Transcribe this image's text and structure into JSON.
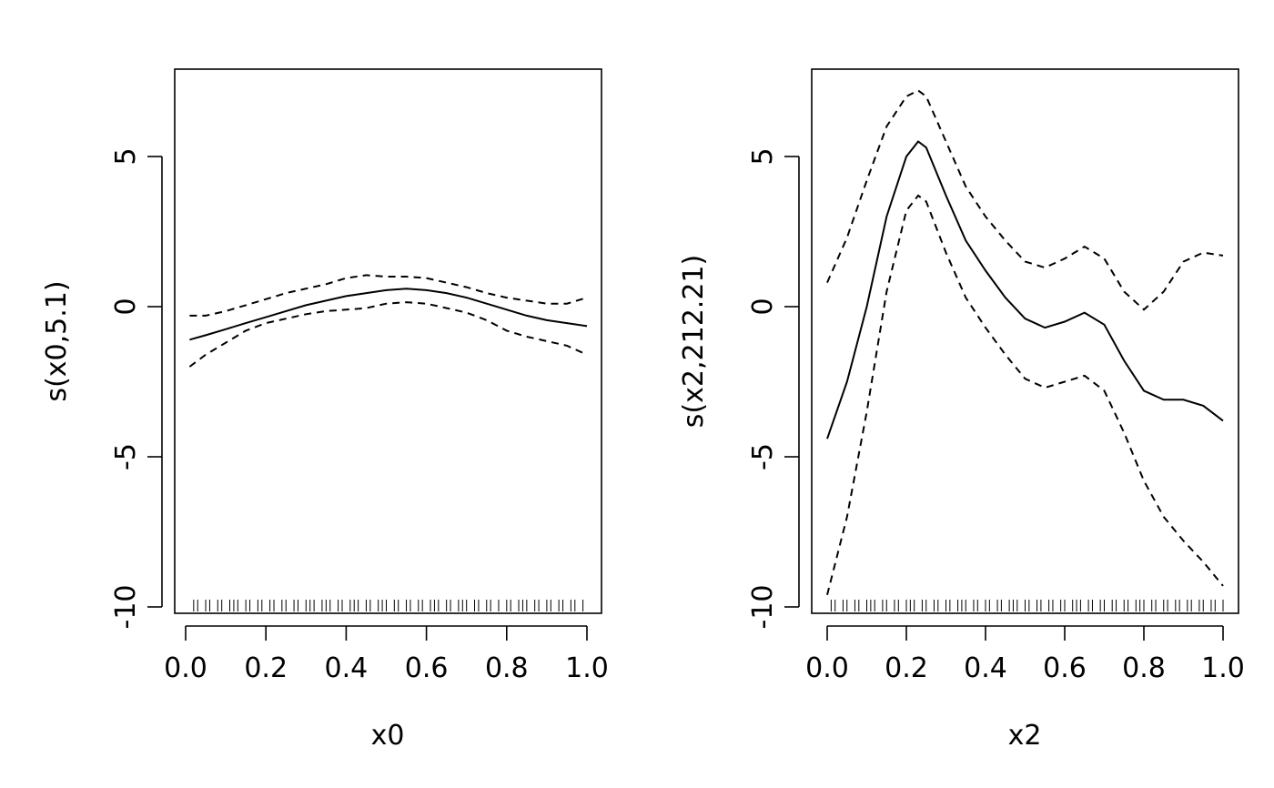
{
  "chart_data": [
    {
      "type": "line",
      "xlabel": "x0",
      "ylabel": "s(x0,5.1)",
      "xlim": [
        0.0,
        1.0
      ],
      "ylim": [
        -10,
        7.5
      ],
      "xticks": [
        "0.0",
        "0.2",
        "0.4",
        "0.6",
        "0.8",
        "1.0"
      ],
      "yticks": [
        "-10",
        "-5",
        "0",
        "5"
      ],
      "series": [
        {
          "line": "solid",
          "x": [
            0.01,
            0.05,
            0.1,
            0.15,
            0.2,
            0.25,
            0.3,
            0.35,
            0.4,
            0.45,
            0.5,
            0.55,
            0.6,
            0.65,
            0.7,
            0.75,
            0.8,
            0.85,
            0.9,
            0.95,
            1.0
          ],
          "y": [
            -1.1,
            -0.95,
            -0.75,
            -0.55,
            -0.35,
            -0.15,
            0.05,
            0.2,
            0.35,
            0.45,
            0.55,
            0.6,
            0.55,
            0.45,
            0.3,
            0.1,
            -0.1,
            -0.3,
            -0.45,
            -0.55,
            -0.65
          ]
        },
        {
          "line": "dashed",
          "x": [
            0.01,
            0.05,
            0.1,
            0.15,
            0.2,
            0.25,
            0.3,
            0.35,
            0.4,
            0.45,
            0.5,
            0.55,
            0.6,
            0.65,
            0.7,
            0.75,
            0.8,
            0.85,
            0.9,
            0.95,
            1.0
          ],
          "y": [
            -0.3,
            -0.3,
            -0.15,
            0.05,
            0.25,
            0.45,
            0.6,
            0.75,
            0.95,
            1.05,
            1.0,
            1.0,
            0.95,
            0.8,
            0.65,
            0.45,
            0.3,
            0.2,
            0.1,
            0.1,
            0.3
          ]
        },
        {
          "line": "dashed",
          "x": [
            0.01,
            0.05,
            0.1,
            0.15,
            0.2,
            0.25,
            0.3,
            0.35,
            0.4,
            0.45,
            0.5,
            0.55,
            0.6,
            0.65,
            0.7,
            0.75,
            0.8,
            0.85,
            0.9,
            0.95,
            1.0
          ],
          "y": [
            -2.0,
            -1.6,
            -1.2,
            -0.8,
            -0.55,
            -0.4,
            -0.25,
            -0.15,
            -0.1,
            -0.05,
            0.1,
            0.15,
            0.1,
            -0.05,
            -0.2,
            -0.45,
            -0.8,
            -1.0,
            -1.15,
            -1.3,
            -1.6
          ]
        }
      ],
      "rug": [
        0.02,
        0.03,
        0.05,
        0.06,
        0.08,
        0.09,
        0.11,
        0.12,
        0.13,
        0.15,
        0.16,
        0.18,
        0.19,
        0.21,
        0.22,
        0.24,
        0.25,
        0.27,
        0.28,
        0.3,
        0.31,
        0.32,
        0.34,
        0.35,
        0.36,
        0.38,
        0.39,
        0.41,
        0.42,
        0.43,
        0.45,
        0.46,
        0.48,
        0.49,
        0.5,
        0.52,
        0.53,
        0.55,
        0.56,
        0.58,
        0.59,
        0.61,
        0.62,
        0.63,
        0.65,
        0.66,
        0.68,
        0.69,
        0.7,
        0.72,
        0.73,
        0.75,
        0.76,
        0.78,
        0.8,
        0.81,
        0.83,
        0.84,
        0.85,
        0.87,
        0.88,
        0.9,
        0.91,
        0.93,
        0.94,
        0.96,
        0.97,
        0.99
      ]
    },
    {
      "type": "line",
      "xlabel": "x2",
      "ylabel": "s(x2,212.21)",
      "xlim": [
        0.0,
        1.0
      ],
      "ylim": [
        -10,
        7.5
      ],
      "xticks": [
        "0.0",
        "0.2",
        "0.4",
        "0.6",
        "0.8",
        "1.0"
      ],
      "yticks": [
        "-10",
        "-5",
        "0",
        "5"
      ],
      "series": [
        {
          "line": "solid",
          "x": [
            0.0,
            0.05,
            0.1,
            0.15,
            0.2,
            0.23,
            0.25,
            0.3,
            0.35,
            0.4,
            0.45,
            0.5,
            0.55,
            0.6,
            0.65,
            0.7,
            0.75,
            0.8,
            0.85,
            0.9,
            0.95,
            1.0
          ],
          "y": [
            -4.4,
            -2.5,
            0.0,
            3.0,
            5.0,
            5.5,
            5.3,
            3.7,
            2.2,
            1.2,
            0.3,
            -0.4,
            -0.7,
            -0.5,
            -0.2,
            -0.6,
            -1.8,
            -2.8,
            -3.1,
            -3.1,
            -3.3,
            -3.8
          ]
        },
        {
          "line": "dashed",
          "x": [
            0.0,
            0.05,
            0.1,
            0.15,
            0.2,
            0.23,
            0.25,
            0.3,
            0.35,
            0.4,
            0.45,
            0.5,
            0.55,
            0.6,
            0.65,
            0.7,
            0.75,
            0.8,
            0.85,
            0.9,
            0.95,
            1.0
          ],
          "y": [
            0.8,
            2.3,
            4.2,
            6.0,
            7.0,
            7.2,
            7.0,
            5.5,
            4.0,
            3.0,
            2.2,
            1.5,
            1.3,
            1.6,
            2.0,
            1.6,
            0.5,
            -0.1,
            0.5,
            1.5,
            1.8,
            1.7
          ]
        },
        {
          "line": "dashed",
          "x": [
            0.0,
            0.05,
            0.1,
            0.15,
            0.2,
            0.23,
            0.25,
            0.3,
            0.35,
            0.4,
            0.45,
            0.5,
            0.55,
            0.6,
            0.65,
            0.7,
            0.75,
            0.8,
            0.85,
            0.9,
            0.95,
            1.0
          ],
          "y": [
            -9.6,
            -7.0,
            -3.5,
            0.5,
            3.2,
            3.7,
            3.5,
            1.8,
            0.3,
            -0.7,
            -1.6,
            -2.4,
            -2.7,
            -2.5,
            -2.3,
            -2.8,
            -4.2,
            -5.8,
            -7.0,
            -7.8,
            -8.5,
            -9.3
          ]
        }
      ],
      "rug": [
        0.01,
        0.02,
        0.04,
        0.05,
        0.07,
        0.08,
        0.1,
        0.11,
        0.12,
        0.14,
        0.15,
        0.17,
        0.18,
        0.2,
        0.21,
        0.22,
        0.24,
        0.25,
        0.27,
        0.28,
        0.3,
        0.31,
        0.33,
        0.34,
        0.35,
        0.37,
        0.38,
        0.4,
        0.41,
        0.43,
        0.44,
        0.46,
        0.47,
        0.48,
        0.5,
        0.51,
        0.53,
        0.54,
        0.56,
        0.57,
        0.59,
        0.6,
        0.62,
        0.63,
        0.64,
        0.66,
        0.67,
        0.69,
        0.7,
        0.72,
        0.73,
        0.75,
        0.76,
        0.78,
        0.79,
        0.8,
        0.82,
        0.83,
        0.85,
        0.86,
        0.88,
        0.89,
        0.91,
        0.92,
        0.94,
        0.95,
        0.97,
        0.98,
        1.0
      ]
    }
  ]
}
